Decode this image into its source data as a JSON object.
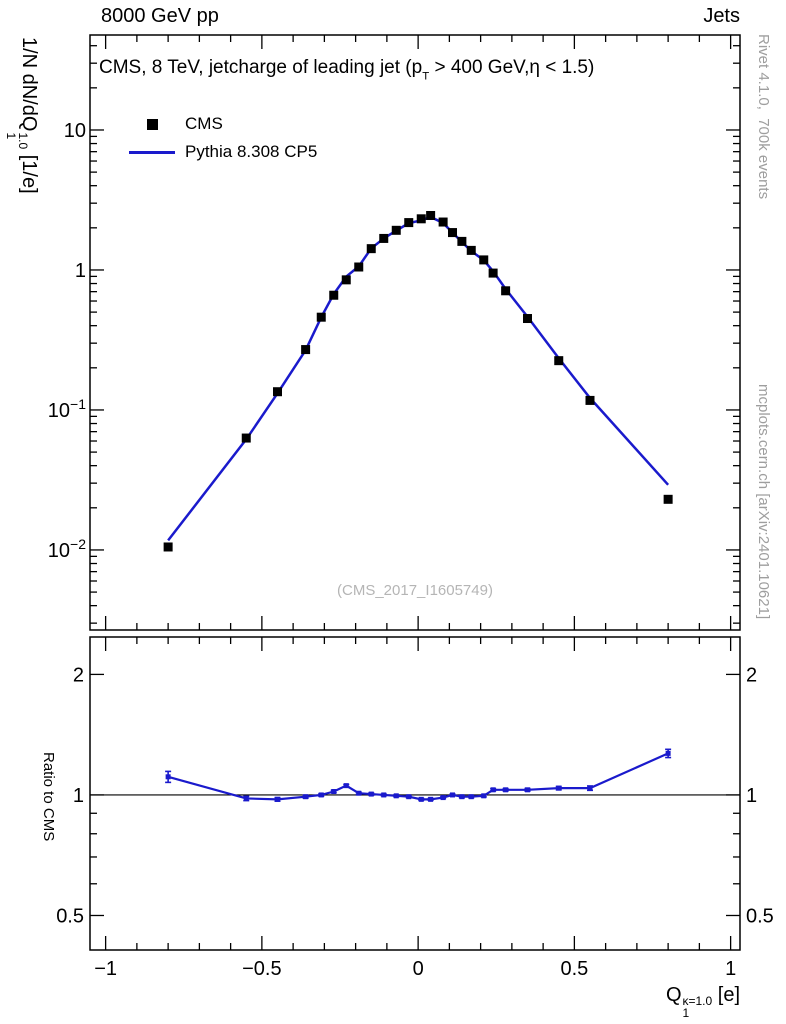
{
  "header": {
    "left": "8000 GeV pp",
    "right": "Jets"
  },
  "title": {
    "pre": "CMS, 8 TeV, jetcharge of leading jet (p",
    "sub": "T",
    "post": " > 400 GeV,η < 1.5)"
  },
  "legend": {
    "items": [
      {
        "label": "CMS",
        "swatch": "black-square-marker"
      },
      {
        "label": "Pythia 8.308 CP5",
        "swatch": "blue-line"
      }
    ]
  },
  "watermark": "(CMS_2017_I1605749)",
  "side_text_top": "Rivet 4.1.0,  700k events",
  "side_text_bottom": "mcplots.cern.ch [arXiv:2401.10621]",
  "y_axis_title": {
    "pre": "1/N dN/dQ",
    "sup": "1.0",
    "sub": "1",
    "post": " [1/e]"
  },
  "ratio_axis_title": "Ratio to CMS",
  "x_axis_title": {
    "pre": "Q",
    "sup": "κ=1.0",
    "sub": "1",
    "post": " [e]"
  },
  "chart_data": {
    "type": "line",
    "title": "CMS, 8 TeV, jetcharge of leading jet (pT > 400 GeV, η < 1.5)",
    "xlabel": "Q1^{κ=1.0} [e]",
    "ylabel": "1/N dN/dQ1^{1.0} [1/e]",
    "ratio_ylabel": "Ratio to CMS",
    "x_range": [
      -1.05,
      1.03
    ],
    "main_y_range": [
      0.00268,
      47.7
    ],
    "ratio_y_range": [
      0.41,
      2.48
    ],
    "x": [
      -0.8,
      -0.55,
      -0.45,
      -0.36,
      -0.31,
      -0.27,
      -0.23,
      -0.19,
      -0.15,
      -0.11,
      -0.07,
      -0.03,
      0.01,
      0.04,
      0.08,
      0.11,
      0.14,
      0.17,
      0.21,
      0.24,
      0.28,
      0.35,
      0.45,
      0.55,
      0.8
    ],
    "series": [
      {
        "name": "CMS",
        "type": "marker",
        "color": "#000000",
        "values": [
          0.0105,
          0.063,
          0.135,
          0.27,
          0.46,
          0.66,
          0.85,
          1.05,
          1.42,
          1.68,
          1.92,
          2.18,
          2.32,
          2.45,
          2.2,
          1.85,
          1.6,
          1.38,
          1.18,
          0.95,
          0.71,
          0.45,
          0.225,
          0.117,
          0.023
        ],
        "yerr_rel": [
          0.05,
          0.02,
          0.015,
          0.012,
          0.01,
          0.01,
          0.008,
          0.008,
          0.007,
          0.007,
          0.006,
          0.006,
          0.006,
          0.006,
          0.006,
          0.006,
          0.007,
          0.007,
          0.008,
          0.008,
          0.01,
          0.012,
          0.015,
          0.02,
          0.04
        ]
      },
      {
        "name": "Pythia 8.308 CP5",
        "type": "line",
        "color": "#1a1acc",
        "values": [
          0.0117,
          0.0617,
          0.1316,
          0.2673,
          0.46,
          0.6732,
          0.8968,
          1.0605,
          1.4271,
          1.68,
          1.9104,
          2.1582,
          2.262,
          2.3888,
          2.167,
          1.85,
          1.584,
          1.3662,
          1.1741,
          0.9785,
          0.7313,
          0.4635,
          0.234,
          0.1217,
          0.0292
        ]
      }
    ],
    "ratio": {
      "name": "Pythia 8.308 CP5 / CMS",
      "values": [
        1.11,
        0.98,
        0.975,
        0.99,
        1.0,
        1.02,
        1.055,
        1.01,
        1.005,
        1.0,
        0.995,
        0.99,
        0.975,
        0.975,
        0.985,
        1.0,
        0.99,
        0.99,
        0.995,
        1.03,
        1.03,
        1.03,
        1.04,
        1.04,
        1.27
      ],
      "err": [
        0.035,
        0.012,
        0.01,
        0.008,
        0.007,
        0.007,
        0.007,
        0.006,
        0.006,
        0.005,
        0.005,
        0.005,
        0.005,
        0.005,
        0.005,
        0.005,
        0.006,
        0.006,
        0.006,
        0.007,
        0.007,
        0.008,
        0.01,
        0.013,
        0.03
      ]
    },
    "xticks": [
      {
        "v": -1,
        "t": "−1"
      },
      {
        "v": -0.5,
        "t": "−0.5"
      },
      {
        "v": 0,
        "t": "0"
      },
      {
        "v": 0.5,
        "t": "0.5"
      },
      {
        "v": 1,
        "t": "1"
      }
    ],
    "x_minor_step": 0.1,
    "main_yticks": [
      {
        "v": 10,
        "t": "10",
        "e": ""
      },
      {
        "v": 1,
        "t": "1",
        "e": ""
      },
      {
        "v": 0.1,
        "t": "10",
        "e": "−1"
      },
      {
        "v": 0.01,
        "t": "10",
        "e": "−2"
      }
    ],
    "ratio_yticks": [
      {
        "v": 2,
        "t": "2"
      },
      {
        "v": 1,
        "t": "1"
      },
      {
        "v": 0.5,
        "t": "0.5"
      }
    ],
    "ratio_minor_ticks": [
      0.6,
      0.7,
      0.8,
      0.9
    ],
    "grid": false,
    "legend_position": "top-left",
    "colors": {
      "line": "#1a1acc",
      "marker": "#000000",
      "frame": "#000000",
      "gray": "#9e9e9e"
    }
  }
}
